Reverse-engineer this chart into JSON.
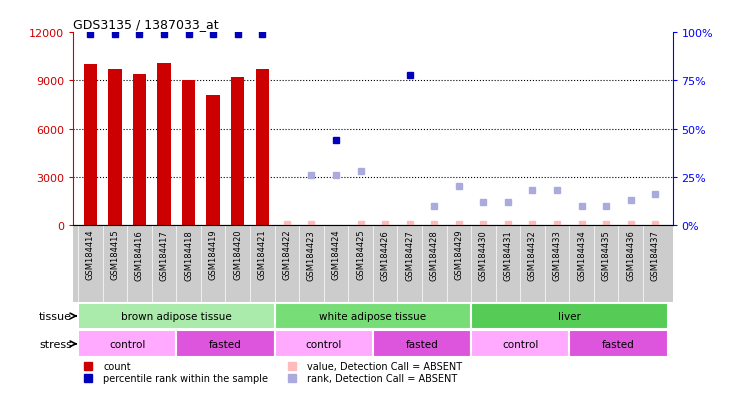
{
  "title": "GDS3135 / 1387033_at",
  "samples": [
    "GSM184414",
    "GSM184415",
    "GSM184416",
    "GSM184417",
    "GSM184418",
    "GSM184419",
    "GSM184420",
    "GSM184421",
    "GSM184422",
    "GSM184423",
    "GSM184424",
    "GSM184425",
    "GSM184426",
    "GSM184427",
    "GSM184428",
    "GSM184429",
    "GSM184430",
    "GSM184431",
    "GSM184432",
    "GSM184433",
    "GSM184434",
    "GSM184435",
    "GSM184436",
    "GSM184437"
  ],
  "counts": [
    10000,
    9700,
    9400,
    10100,
    9050,
    8100,
    9200,
    9700,
    0,
    0,
    0,
    0,
    0,
    0,
    0,
    0,
    0,
    0,
    0,
    0,
    0,
    0,
    0,
    0
  ],
  "percentile_present": {
    "0": 99,
    "1": 99,
    "2": 99,
    "3": 99,
    "4": 99,
    "5": 99,
    "6": 99,
    "7": 99,
    "10": 44,
    "13": 78
  },
  "percentile_absent_rank": {
    "9": 26,
    "10": 26,
    "11": 28,
    "14": 10,
    "15": 20,
    "16": 12,
    "17": 12,
    "18": 18,
    "19": 18,
    "20": 10,
    "21": 10,
    "22": 13,
    "23": 16
  },
  "absent_value_indices": [
    8,
    9,
    11,
    12,
    13,
    14,
    15,
    16,
    17,
    18,
    19,
    20,
    21,
    22,
    23
  ],
  "tissue_groups": [
    {
      "label": "brown adipose tissue",
      "start": 0,
      "end": 8,
      "color": "#AAEAAA"
    },
    {
      "label": "white adipose tissue",
      "start": 8,
      "end": 16,
      "color": "#77DD77"
    },
    {
      "label": "liver",
      "start": 16,
      "end": 24,
      "color": "#55CC55"
    }
  ],
  "stress_groups": [
    {
      "label": "control",
      "start": 0,
      "end": 4,
      "color": "#FFAAFF"
    },
    {
      "label": "fasted",
      "start": 4,
      "end": 8,
      "color": "#DD55DD"
    },
    {
      "label": "control",
      "start": 8,
      "end": 12,
      "color": "#FFAAFF"
    },
    {
      "label": "fasted",
      "start": 12,
      "end": 16,
      "color": "#DD55DD"
    },
    {
      "label": "control",
      "start": 16,
      "end": 20,
      "color": "#FFAAFF"
    },
    {
      "label": "fasted",
      "start": 20,
      "end": 24,
      "color": "#DD55DD"
    }
  ],
  "ylim_left": [
    0,
    12000
  ],
  "ylim_right": [
    0,
    100
  ],
  "yticks_left": [
    0,
    3000,
    6000,
    9000,
    12000
  ],
  "yticks_right": [
    0,
    25,
    50,
    75,
    100
  ],
  "bar_color": "#CC0000",
  "dot_present_color": "#0000BB",
  "dot_absent_rank_color": "#AAAADD",
  "dot_absent_value_color": "#FFBBBB",
  "xticklabel_bg": "#CCCCCC",
  "background_color": "#FFFFFF"
}
